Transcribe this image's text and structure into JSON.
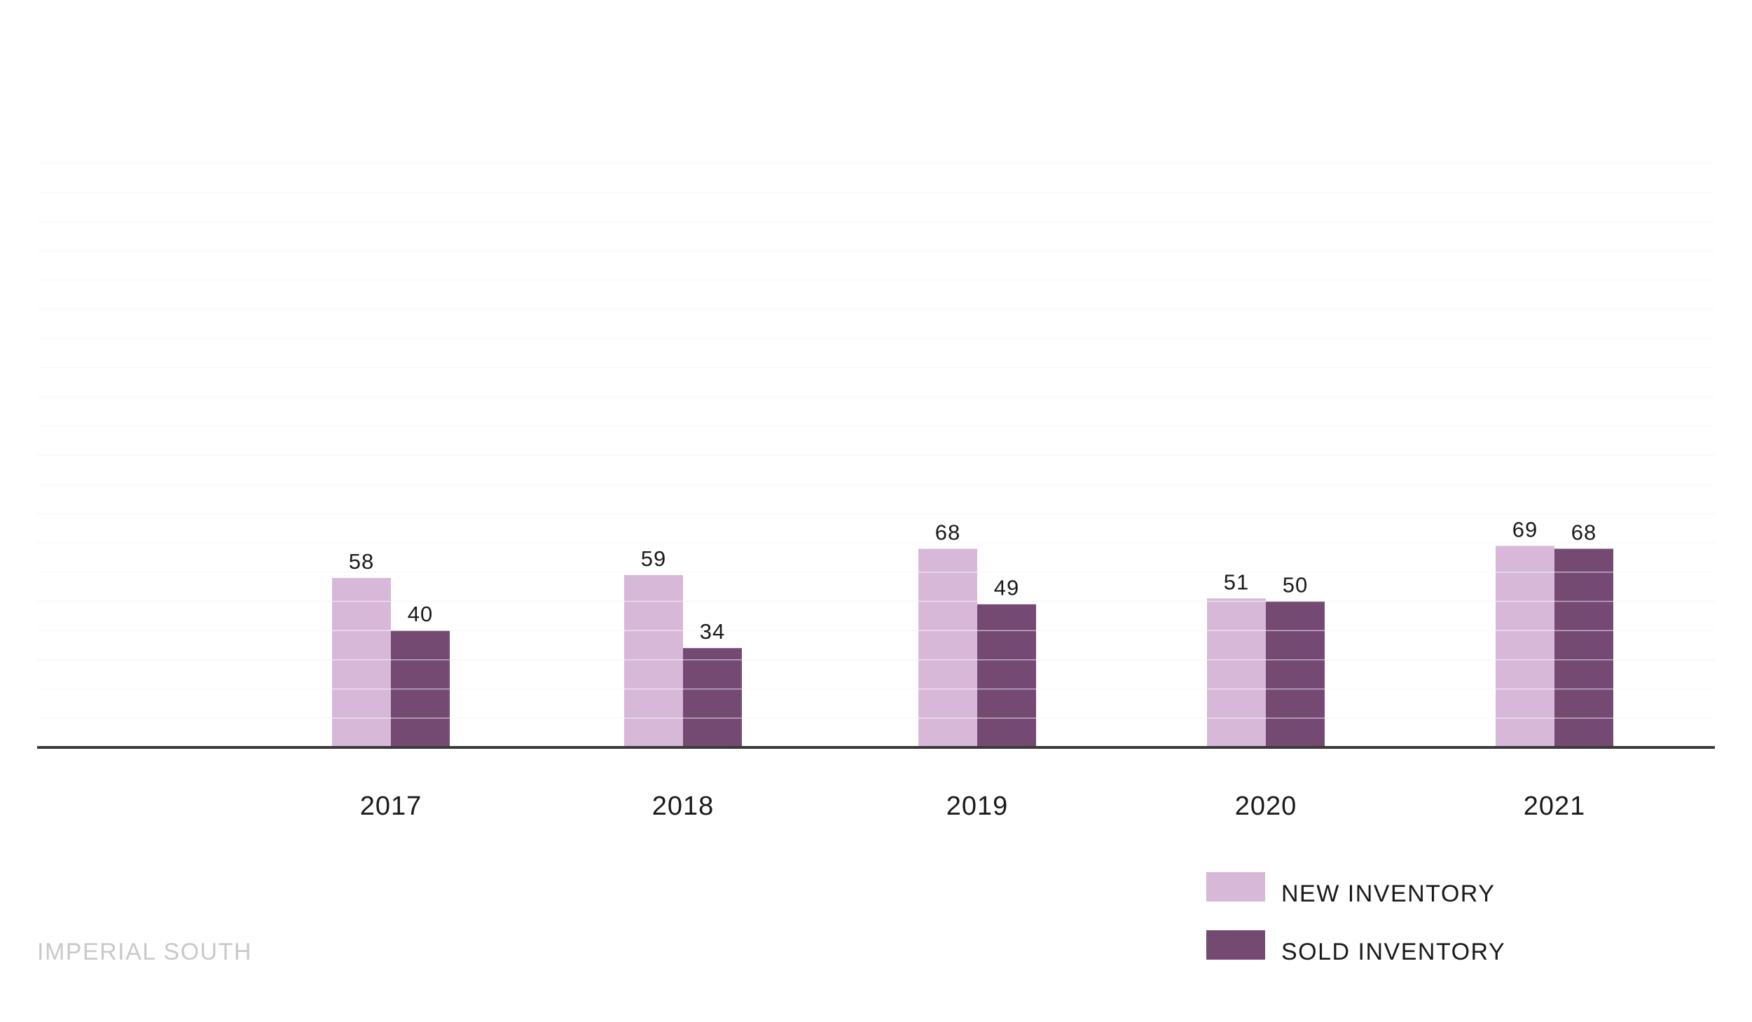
{
  "footer": {
    "label": "IMPERIAL SOUTH"
  },
  "colors": {
    "new_inventory": "#d7b8d8",
    "sold_inventory": "#744a73",
    "axis": "#3a3a3a",
    "grid": "#f2f2f2",
    "footer_text": "#c9c9c9"
  },
  "chart_data": {
    "type": "bar",
    "title": "",
    "xlabel": "",
    "ylabel": "",
    "categories": [
      "2017",
      "2018",
      "2019",
      "2020",
      "2021"
    ],
    "series": [
      {
        "name": "NEW INVENTORY",
        "values": [
          58,
          59,
          68,
          51,
          69
        ],
        "color": "#d7b8d8"
      },
      {
        "name": "SOLD INVENTORY",
        "values": [
          40,
          34,
          49,
          50,
          68
        ],
        "color": "#744a73"
      }
    ],
    "ylim": [
      0,
      200
    ],
    "grid": true,
    "data_labels": true,
    "legend": "bottom-right"
  }
}
